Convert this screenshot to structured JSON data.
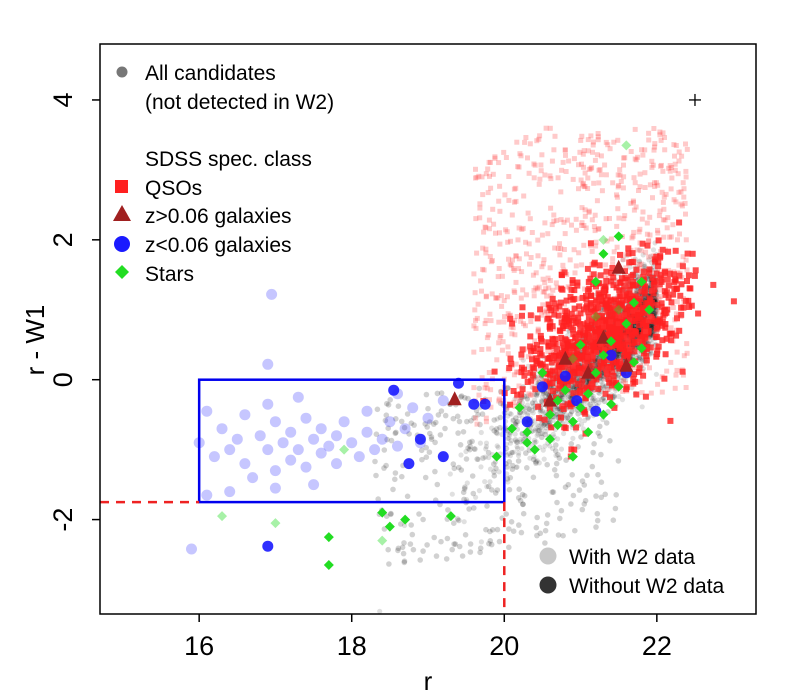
{
  "chart_data": {
    "type": "scatter",
    "xlabel": "r",
    "ylabel": "r - W1",
    "xlim": [
      14.7,
      23.3
    ],
    "ylim": [
      -3.35,
      4.8
    ],
    "xticks": [
      16,
      18,
      20,
      22
    ],
    "yticks": [
      -2,
      0,
      2,
      4
    ],
    "xtick_labels": [
      "16",
      "18",
      "20",
      "22"
    ],
    "ytick_labels": [
      "-2",
      "0",
      "2",
      "4"
    ],
    "selection_box": {
      "x": [
        16,
        20
      ],
      "y": [
        -1.75,
        0
      ],
      "color": "#0000ee"
    },
    "cut_lines": {
      "r_max": 20,
      "color_min": -1.75,
      "color": "#ee2222"
    },
    "error_cross": {
      "x": 22.5,
      "y": 4.0
    },
    "legend_top": {
      "all_candidates": "All candidates",
      "not_detected": "(not detected in W2)",
      "spec_title": "SDSS spec. class",
      "qsos": "QSOs",
      "high_z": "z>0.06 galaxies",
      "low_z": "z<0.06 galaxies",
      "stars": "Stars"
    },
    "legend_bottom": {
      "with_w2": "With W2 data",
      "without_w2": "Without W2 data"
    },
    "colors": {
      "qso": "#ff2020",
      "high_z": "#a02020",
      "low_z": "#1a1aff",
      "star": "#22dd22",
      "candidate": "#000000"
    },
    "series": [
      {
        "name": "z<0.06 galaxies (with W2)",
        "marker": "circle",
        "points": [
          [
            16.0,
            -0.9
          ],
          [
            16.2,
            -1.1
          ],
          [
            16.3,
            -0.7
          ],
          [
            16.4,
            -1.0
          ],
          [
            16.5,
            -0.85
          ],
          [
            16.6,
            -1.2
          ],
          [
            16.6,
            -0.5
          ],
          [
            16.7,
            -1.4
          ],
          [
            16.8,
            -0.8
          ],
          [
            16.9,
            -1.0
          ],
          [
            17.0,
            -0.6
          ],
          [
            17.0,
            -1.3
          ],
          [
            17.1,
            -0.9
          ],
          [
            17.2,
            -0.75
          ],
          [
            17.2,
            -1.15
          ],
          [
            17.3,
            -1.0
          ],
          [
            17.4,
            -0.55
          ],
          [
            17.4,
            -1.25
          ],
          [
            17.5,
            -0.85
          ],
          [
            17.6,
            -0.7
          ],
          [
            17.6,
            -1.05
          ],
          [
            17.7,
            -0.95
          ],
          [
            17.8,
            -0.8
          ],
          [
            17.8,
            -1.2
          ],
          [
            17.9,
            -0.6
          ],
          [
            18.0,
            -0.9
          ],
          [
            18.1,
            -1.1
          ],
          [
            18.2,
            -0.45
          ],
          [
            18.2,
            -0.75
          ],
          [
            18.3,
            -1.0
          ],
          [
            18.4,
            -0.85
          ],
          [
            18.5,
            -0.6
          ],
          [
            18.6,
            -0.95
          ],
          [
            18.7,
            -0.7
          ],
          [
            18.8,
            -0.4
          ],
          [
            18.9,
            -0.9
          ],
          [
            16.1,
            -1.65
          ],
          [
            16.4,
            -1.6
          ],
          [
            17.0,
            -1.55
          ],
          [
            17.5,
            -1.5
          ],
          [
            16.1,
            -0.45
          ],
          [
            16.9,
            -0.35
          ],
          [
            17.3,
            -0.25
          ],
          [
            16.9,
            0.22
          ],
          [
            16.95,
            1.22
          ],
          [
            15.9,
            -2.42
          ],
          [
            19.2,
            -0.3
          ],
          [
            19.0,
            -0.55
          ],
          [
            18.6,
            -0.2
          ]
        ]
      },
      {
        "name": "z<0.06 galaxies (without W2)",
        "marker": "circle",
        "points": [
          [
            18.55,
            -0.15
          ],
          [
            18.9,
            -0.85
          ],
          [
            18.75,
            -1.2
          ],
          [
            19.2,
            -1.1
          ],
          [
            19.4,
            -0.05
          ],
          [
            19.6,
            -0.35
          ],
          [
            19.75,
            -0.35
          ],
          [
            20.3,
            -0.6
          ],
          [
            20.5,
            -0.1
          ],
          [
            20.8,
            0.05
          ],
          [
            20.95,
            -0.3
          ],
          [
            21.2,
            -0.45
          ],
          [
            21.4,
            0.35
          ],
          [
            21.6,
            0.1
          ],
          [
            16.9,
            -2.38
          ]
        ]
      },
      {
        "name": "z>0.06 galaxies",
        "marker": "triangle",
        "points": [
          [
            19.35,
            -0.28
          ],
          [
            20.8,
            0.3
          ],
          [
            21.1,
            0.1
          ],
          [
            21.3,
            0.6
          ],
          [
            20.6,
            -0.3
          ],
          [
            21.6,
            0.2
          ],
          [
            21.5,
            1.6
          ]
        ]
      },
      {
        "name": "Stars (with W2)",
        "marker": "diamond",
        "points": [
          [
            16.3,
            -1.95
          ],
          [
            17.0,
            -2.05
          ],
          [
            17.9,
            -1.0
          ],
          [
            18.4,
            -2.3
          ],
          [
            20.9,
            0.3
          ],
          [
            21.2,
            0.9
          ],
          [
            21.5,
            1.0
          ],
          [
            21.6,
            3.35
          ],
          [
            21.3,
            2.0
          ]
        ]
      },
      {
        "name": "Stars (without W2)",
        "marker": "diamond",
        "points": [
          [
            17.7,
            -2.25
          ],
          [
            17.7,
            -2.65
          ],
          [
            18.4,
            -1.9
          ],
          [
            18.5,
            -2.1
          ],
          [
            18.7,
            -2.0
          ],
          [
            19.3,
            -1.95
          ],
          [
            19.9,
            -1.1
          ],
          [
            20.1,
            -0.7
          ],
          [
            20.2,
            -0.4
          ],
          [
            20.3,
            -0.9
          ],
          [
            20.4,
            -1.0
          ],
          [
            20.6,
            -0.85
          ],
          [
            20.6,
            -0.5
          ],
          [
            20.7,
            -0.3
          ],
          [
            20.8,
            -0.15
          ],
          [
            20.9,
            -0.6
          ],
          [
            21.0,
            -0.4
          ],
          [
            21.1,
            -0.2
          ],
          [
            21.1,
            -0.75
          ],
          [
            21.2,
            0.1
          ],
          [
            21.3,
            -0.5
          ],
          [
            21.3,
            0.35
          ],
          [
            21.4,
            0.55
          ],
          [
            21.5,
            -0.1
          ],
          [
            21.6,
            0.8
          ],
          [
            21.7,
            1.1
          ],
          [
            21.8,
            1.4
          ],
          [
            21.9,
            1.0
          ],
          [
            20.5,
            0.1
          ],
          [
            21.0,
            0.5
          ],
          [
            20.9,
            -1.1
          ],
          [
            21.4,
            -0.35
          ],
          [
            21.7,
            0.25
          ],
          [
            21.2,
            1.4
          ],
          [
            21.8,
            0.45
          ],
          [
            20.3,
            -0.75
          ],
          [
            20.7,
            -0.65
          ],
          [
            21.5,
            2.05
          ],
          [
            21.3,
            1.8
          ]
        ]
      }
    ]
  }
}
